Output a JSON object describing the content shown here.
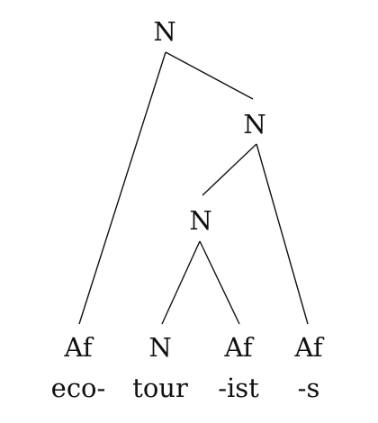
{
  "nodes": {
    "root": "N",
    "mid": "N",
    "inner": "N",
    "leaf1_cat": "Af",
    "leaf1_morph": "eco-",
    "leaf2_cat": "N",
    "leaf2_morph": "tour",
    "leaf3_cat": "Af",
    "leaf3_morph": "-ist",
    "leaf4_cat": "Af",
    "leaf4_morph": "-s"
  }
}
